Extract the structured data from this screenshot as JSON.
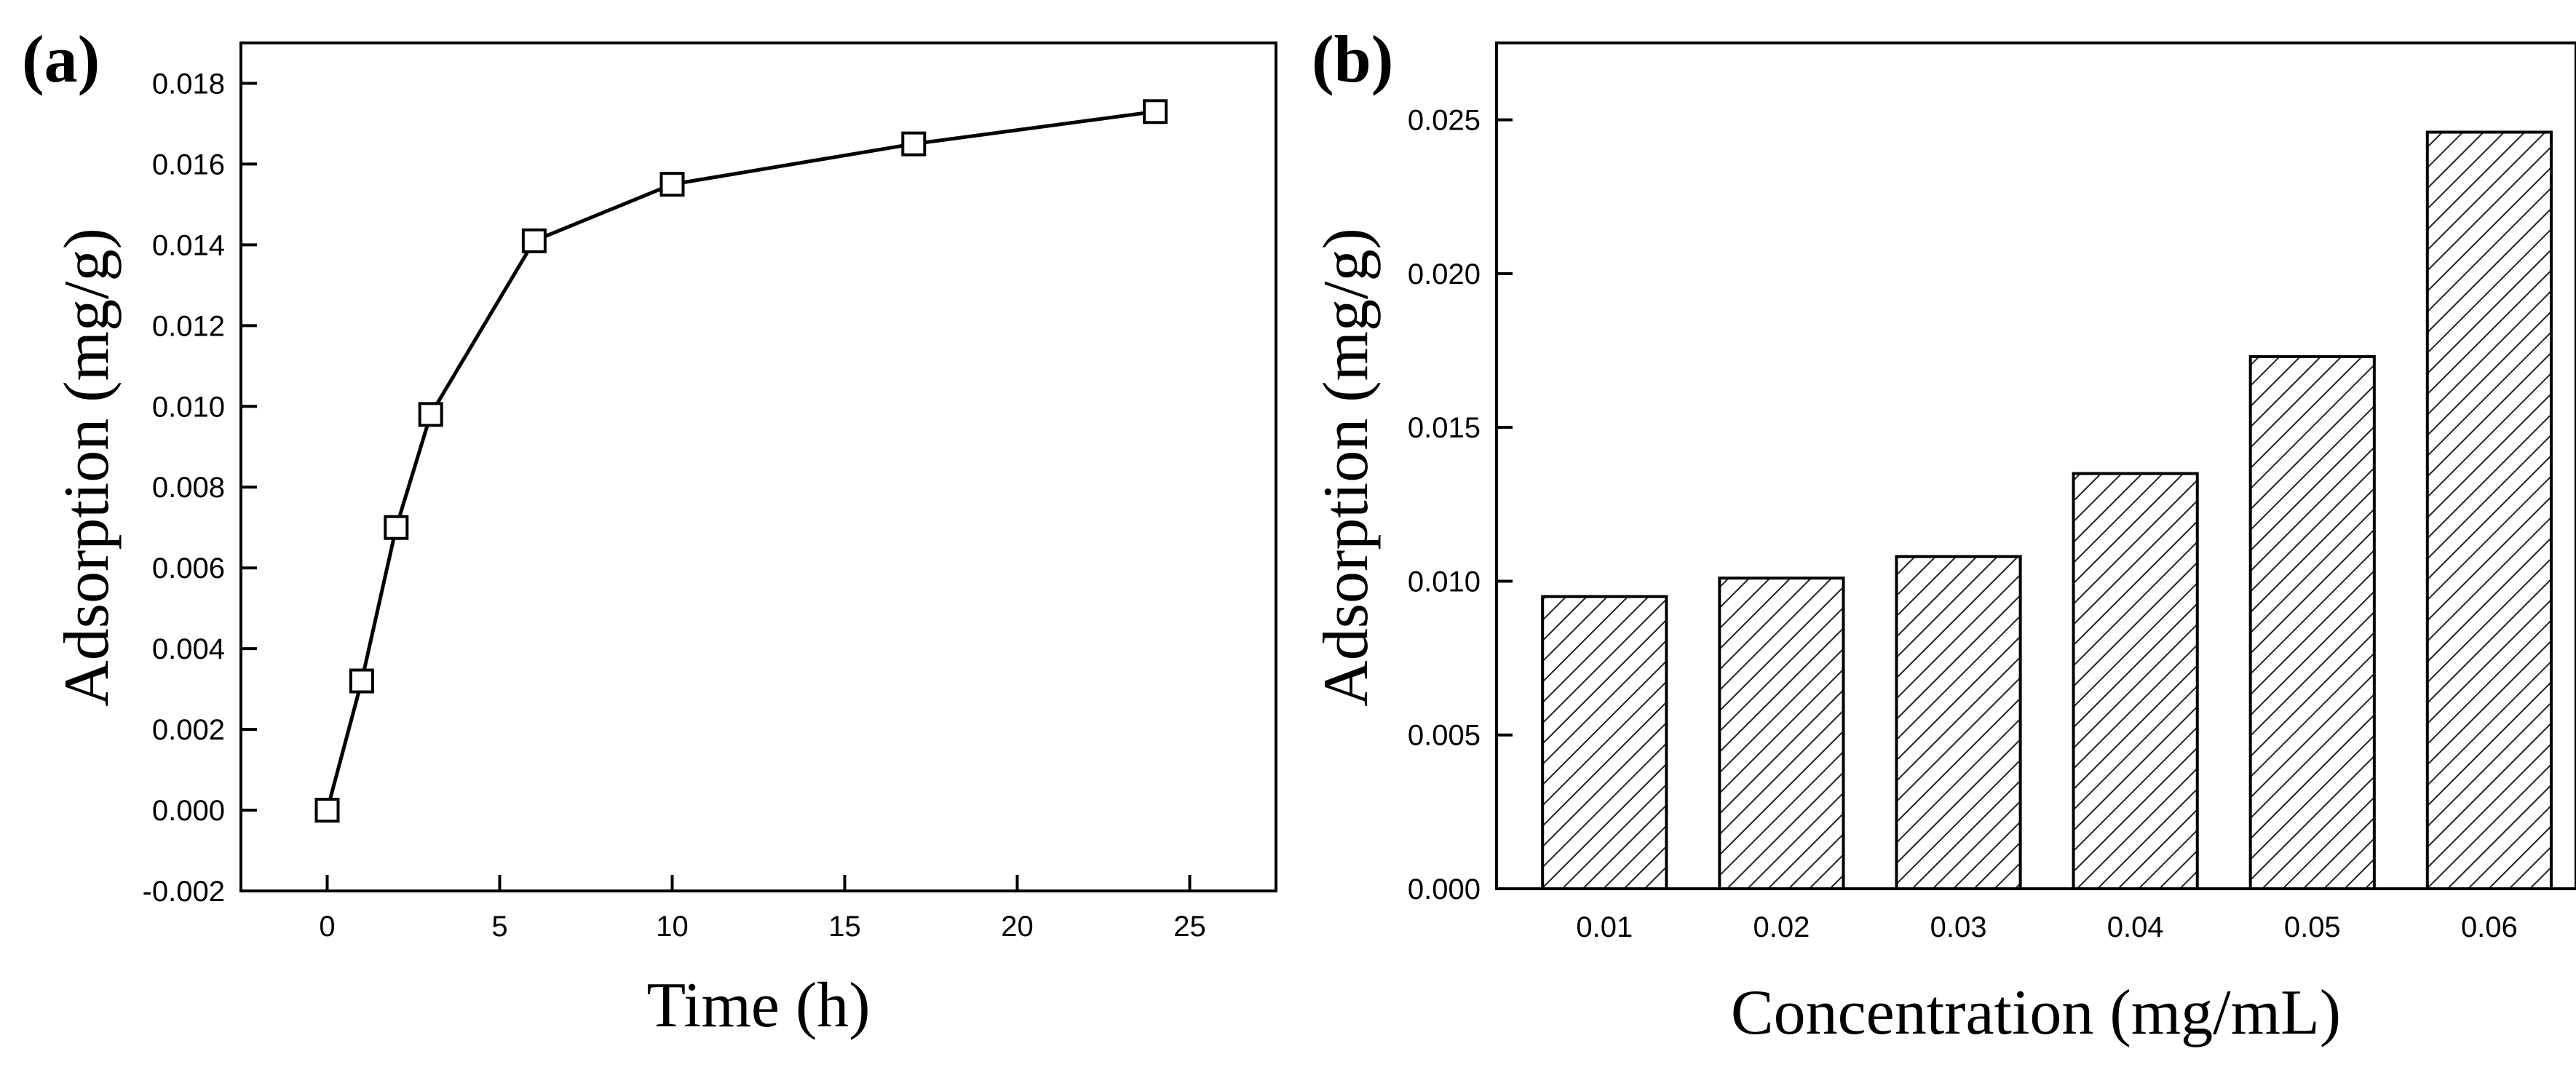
{
  "chart_data": [
    {
      "panel": "(a)",
      "type": "line",
      "xlabel": "Time (h)",
      "ylabel": "Adsorption (mg/g)",
      "xlim": [
        -2.5,
        27.5
      ],
      "ylim": [
        -0.002,
        0.019
      ],
      "xticks": [
        0,
        5,
        10,
        15,
        20,
        25
      ],
      "yticks": [
        -0.002,
        0.0,
        0.002,
        0.004,
        0.006,
        0.008,
        0.01,
        0.012,
        0.014,
        0.016,
        0.018
      ],
      "ytick_labels": [
        "-0.002",
        "0.000",
        "0.002",
        "0.004",
        "0.006",
        "0.008",
        "0.010",
        "0.012",
        "0.014",
        "0.016",
        "0.018"
      ],
      "marker": "open-square",
      "x": [
        0,
        1,
        2,
        3,
        6,
        10,
        17,
        24
      ],
      "y": [
        0.0,
        0.0032,
        0.007,
        0.0098,
        0.0141,
        0.0155,
        0.0165,
        0.0173
      ]
    },
    {
      "panel": "(b)",
      "type": "bar",
      "xlabel": "Concentration (mg/mL)",
      "ylabel": "Adsorption (mg/g)",
      "ylim": [
        0.0,
        0.0275
      ],
      "yticks": [
        0.0,
        0.005,
        0.01,
        0.015,
        0.02,
        0.025
      ],
      "ytick_labels": [
        "0.000",
        "0.005",
        "0.010",
        "0.015",
        "0.020",
        "0.025"
      ],
      "categories": [
        "0.01",
        "0.02",
        "0.03",
        "0.04",
        "0.05",
        "0.06"
      ],
      "values": [
        0.0095,
        0.0101,
        0.0108,
        0.0135,
        0.0173,
        0.0246
      ],
      "fill": "diagonal-hatch"
    }
  ]
}
